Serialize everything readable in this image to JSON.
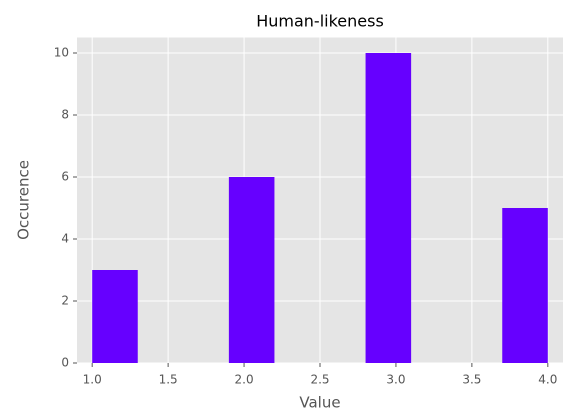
{
  "chart_data": {
    "type": "histogram",
    "title": "Human-likeness",
    "xlabel": "Value",
    "ylabel": "Occurence",
    "bins": [
      1.0,
      1.3,
      1.6,
      1.9,
      2.2,
      2.5,
      2.8,
      3.1,
      3.4,
      3.7,
      4.0
    ],
    "values": [
      3,
      0,
      0,
      6,
      0,
      0,
      10,
      0,
      0,
      5
    ],
    "color": "#6600ff",
    "xlim": [
      0.9,
      4.1
    ],
    "xticks": [
      {
        "value": 1,
        "label": "1.0"
      },
      {
        "value": 1.5,
        "label": "1.5"
      },
      {
        "value": 2,
        "label": "2.0"
      },
      {
        "value": 2.5,
        "label": "2.5"
      },
      {
        "value": 3,
        "label": "3.0"
      },
      {
        "value": 3.5,
        "label": "3.5"
      },
      {
        "value": 4,
        "label": "4.0"
      }
    ],
    "ylim": [
      0,
      10.5
    ],
    "yticks": [
      0,
      2,
      4,
      6,
      8,
      10
    ],
    "grid": true
  }
}
